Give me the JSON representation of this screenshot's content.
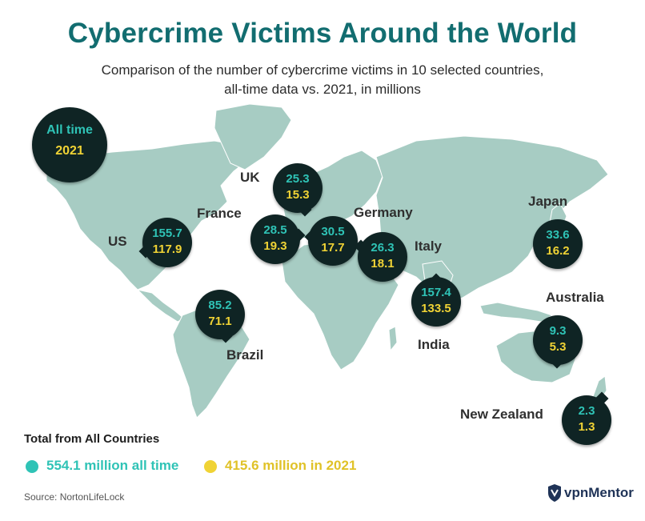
{
  "title": "Cybercrime Victims Around the World",
  "subtitle": "Comparison of the number of cybercrime victims in 10 selected countries, all-time data vs. 2021, in millions",
  "colors": {
    "title": "#126d70",
    "all_time": "#2fc3b6",
    "year_2021": "#f0d335",
    "bubble": "#0f2424",
    "land": "#a7ccc3"
  },
  "key": {
    "label_all_time": "All time",
    "label_2021": "2021"
  },
  "countries": [
    {
      "name": "US",
      "all_time": "155.7",
      "y2021": "117.9"
    },
    {
      "name": "UK",
      "all_time": "25.3",
      "y2021": "15.3"
    },
    {
      "name": "France",
      "all_time": "28.5",
      "y2021": "19.3"
    },
    {
      "name": "Germany",
      "all_time": "30.5",
      "y2021": "17.7"
    },
    {
      "name": "Italy",
      "all_time": "26.3",
      "y2021": "18.1"
    },
    {
      "name": "Japan",
      "all_time": "33.6",
      "y2021": "16.2"
    },
    {
      "name": "Brazil",
      "all_time": "85.2",
      "y2021": "71.1"
    },
    {
      "name": "India",
      "all_time": "157.4",
      "y2021": "133.5"
    },
    {
      "name": "Australia",
      "all_time": "9.3",
      "y2021": "5.3"
    },
    {
      "name": "New Zealand",
      "all_time": "2.3",
      "y2021": "1.3"
    }
  ],
  "totals": {
    "title": "Total from All Countries",
    "all_time": "554.1 million all time",
    "y2021": "415.6 million in 2021"
  },
  "source": "Source: NortonLifeLock",
  "brand": {
    "prefix": "vpn",
    "suffix": "Mentor"
  }
}
